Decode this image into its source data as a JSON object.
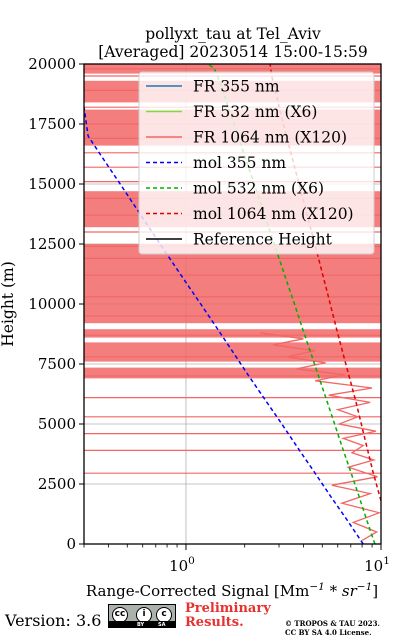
{
  "chart_data": {
    "type": "line",
    "title_line1": "pollyxt_tau at Tel_Aviv",
    "title_line2": "[Averaged] 20230514 15:00-15:59",
    "xlabel": "Range-Corrected Signal [Mm",
    "xlabel_sup1": "−1",
    "xlabel_mid": " * sr",
    "xlabel_sup2": "−1",
    "xlabel_end": "]",
    "ylabel": "Height (m)",
    "xscale": "log",
    "xlim": [
      0.3,
      10
    ],
    "ylim": [
      0,
      20000
    ],
    "grid": true,
    "legend_position": "upper-right",
    "x_ticks": [
      {
        "value": 1,
        "base": "10",
        "exp": "0"
      },
      {
        "value": 10,
        "base": "10",
        "exp": "1"
      }
    ],
    "y_ticks": [
      {
        "value": 0,
        "label": "0"
      },
      {
        "value": 2500,
        "label": "2500"
      },
      {
        "value": 5000,
        "label": "5000"
      },
      {
        "value": 7500,
        "label": "7500"
      },
      {
        "value": 10000,
        "label": "10000"
      },
      {
        "value": 12500,
        "label": "12500"
      },
      {
        "value": 15000,
        "label": "15000"
      },
      {
        "value": 17500,
        "label": "17500"
      },
      {
        "value": 20000,
        "label": "20000"
      }
    ],
    "legend": [
      {
        "label": "FR 355 nm",
        "color": "#1f77b4",
        "style": "solid"
      },
      {
        "label": "FR 532 nm (X6)",
        "color": "#7fdc3c",
        "style": "solid"
      },
      {
        "label": "FR 1064 nm (X120)",
        "color": "#f16766",
        "style": "solid"
      },
      {
        "label": "mol 355 nm",
        "color": "#0000ff",
        "style": "dashed"
      },
      {
        "label": "mol 532 nm (X6)",
        "color": "#00b000",
        "style": "dashed"
      },
      {
        "label": "mol 1064 nm (X120)",
        "color": "#e00000",
        "style": "dashed"
      },
      {
        "label": "Reference Height",
        "color": "#000000",
        "style": "solid"
      }
    ],
    "series": [
      {
        "name": "mol 355 nm",
        "color": "#0000ff",
        "dash": true,
        "points": [
          [
            8.1,
            0
          ],
          [
            6.7,
            1000
          ],
          [
            5.5,
            2000
          ],
          [
            4.55,
            3000
          ],
          [
            3.75,
            4000
          ],
          [
            3.1,
            5000
          ],
          [
            2.55,
            6000
          ],
          [
            2.1,
            7000
          ],
          [
            1.74,
            8000
          ],
          [
            1.44,
            9000
          ],
          [
            1.19,
            10000
          ],
          [
            0.98,
            11000
          ],
          [
            0.81,
            12000
          ],
          [
            0.67,
            13000
          ],
          [
            0.555,
            14000
          ],
          [
            0.46,
            15000
          ],
          [
            0.38,
            16000
          ],
          [
            0.315,
            17000
          ],
          [
            0.3,
            18200
          ]
        ]
      },
      {
        "name": "mol 532 nm (X6)",
        "color": "#00b000",
        "dash": true,
        "points": [
          [
            9.3,
            0
          ],
          [
            8.45,
            1000
          ],
          [
            7.7,
            2000
          ],
          [
            7.0,
            3000
          ],
          [
            6.35,
            4000
          ],
          [
            5.78,
            5000
          ],
          [
            5.26,
            6000
          ],
          [
            4.78,
            7000
          ],
          [
            4.35,
            8000
          ],
          [
            3.95,
            9000
          ],
          [
            3.6,
            10000
          ],
          [
            3.27,
            11000
          ],
          [
            2.97,
            12000
          ],
          [
            2.7,
            13000
          ],
          [
            2.46,
            14000
          ],
          [
            2.24,
            15000
          ],
          [
            2.03,
            16000
          ],
          [
            1.85,
            17000
          ],
          [
            1.68,
            18000
          ],
          [
            1.53,
            19000
          ],
          [
            1.4,
            19800
          ],
          [
            1.3,
            20000
          ]
        ]
      },
      {
        "name": "mol 1064 nm (X120)",
        "color": "#e00000",
        "dash": true,
        "points": [
          [
            10.0,
            1800
          ],
          [
            9.1,
            3000
          ],
          [
            8.2,
            4500
          ],
          [
            7.4,
            6000
          ],
          [
            6.6,
            7500
          ],
          [
            5.9,
            9000
          ],
          [
            5.3,
            10500
          ],
          [
            4.75,
            12000
          ],
          [
            4.25,
            13500
          ],
          [
            3.8,
            15000
          ],
          [
            3.4,
            16500
          ],
          [
            3.05,
            18000
          ],
          [
            2.75,
            19500
          ],
          [
            2.7,
            20000
          ]
        ]
      }
    ],
    "fr1064_color": "#f16766",
    "fr1064_upper_bands": [
      [
        9200,
        12500
      ],
      [
        13200,
        14700
      ],
      [
        16600,
        18100
      ],
      [
        18400,
        19300
      ],
      [
        19600,
        20000
      ]
    ],
    "fr1064_lower_bands": [
      [
        6900,
        7350
      ],
      [
        7600,
        8400
      ],
      [
        8600,
        8950
      ]
    ],
    "fr1064_profile": [
      [
        8.0,
        150
      ],
      [
        9.5,
        500
      ],
      [
        7.2,
        900
      ],
      [
        9.8,
        1300
      ],
      [
        6.3,
        1700
      ],
      [
        8.8,
        2100
      ],
      [
        5.6,
        2450
      ],
      [
        9.6,
        2800
      ],
      [
        6.8,
        3200
      ],
      [
        9.2,
        3500
      ],
      [
        7.1,
        3800
      ],
      [
        8.1,
        4100
      ],
      [
        6.4,
        4400
      ],
      [
        9.4,
        4700
      ],
      [
        6.1,
        5000
      ],
      [
        7.6,
        5300
      ],
      [
        6.0,
        5600
      ],
      [
        8.8,
        5900
      ],
      [
        5.4,
        6200
      ],
      [
        9.0,
        6500
      ],
      [
        4.6,
        6800
      ],
      [
        6.5,
        7050
      ],
      [
        3.7,
        7300
      ],
      [
        5.2,
        7550
      ],
      [
        3.3,
        7800
      ],
      [
        4.6,
        8050
      ],
      [
        2.8,
        8300
      ],
      [
        4.0,
        8550
      ],
      [
        2.4,
        8800
      ]
    ],
    "fr1064_hlines": [
      2950,
      3900,
      4600,
      5300,
      6100,
      7000,
      7800,
      8700,
      9500,
      10300,
      11200,
      11900,
      12400,
      13000,
      13700,
      14400,
      15100,
      15700,
      16300,
      16900,
      17500,
      18200,
      18900,
      19500,
      19800
    ],
    "version": "Version: 3.6",
    "cc_labels": [
      "BY",
      "SA"
    ],
    "preliminary_line1": "Preliminary",
    "preliminary_line2": "Results.",
    "copyright_line1": "© TROPOS & TAU 2023.",
    "copyright_line2": "CC BY SA 4.0 License."
  }
}
